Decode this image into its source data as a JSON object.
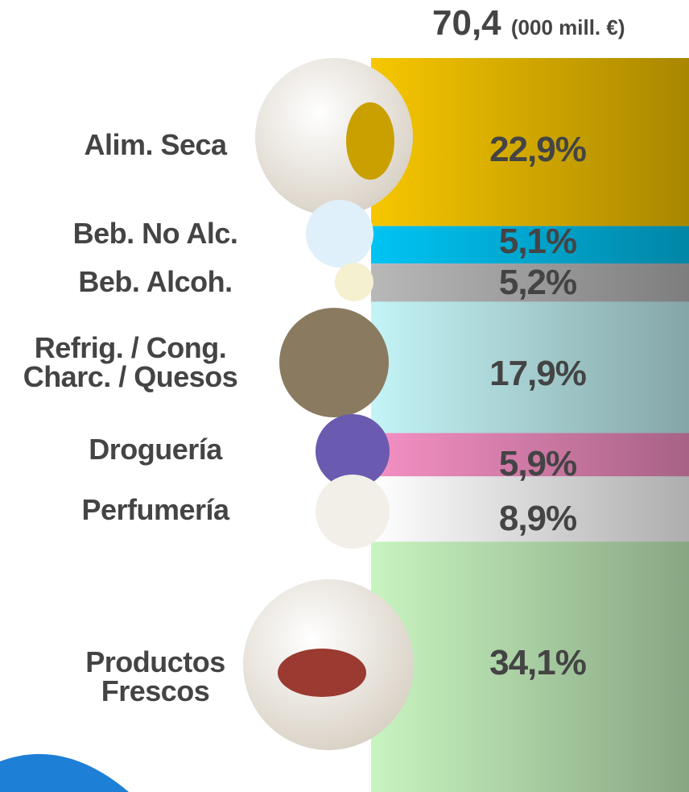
{
  "chart_data": {
    "type": "bar",
    "stacked": true,
    "title": "70,4",
    "subtitle": "(000 mill. €)",
    "categories": [
      "Alim. Seca",
      "Beb. No Alc.",
      "Beb. Alcoh.",
      "Refrig. / Cong.\nCharc. / Quesos",
      "Droguería",
      "Perfumería",
      "Productos\nFrescos"
    ],
    "values": [
      22.9,
      5.1,
      5.2,
      17.9,
      5.9,
      8.9,
      34.1
    ],
    "value_labels": [
      "22,9%",
      "5,1%",
      "5,2%",
      "17,9%",
      "5,9%",
      "8,9%",
      "34,1%"
    ],
    "colors": [
      "#f7c600",
      "#00c4f4",
      "#b8b8b8",
      "#c4f4f6",
      "#f590c4",
      "#ffffff",
      "#c8f4c0"
    ]
  }
}
